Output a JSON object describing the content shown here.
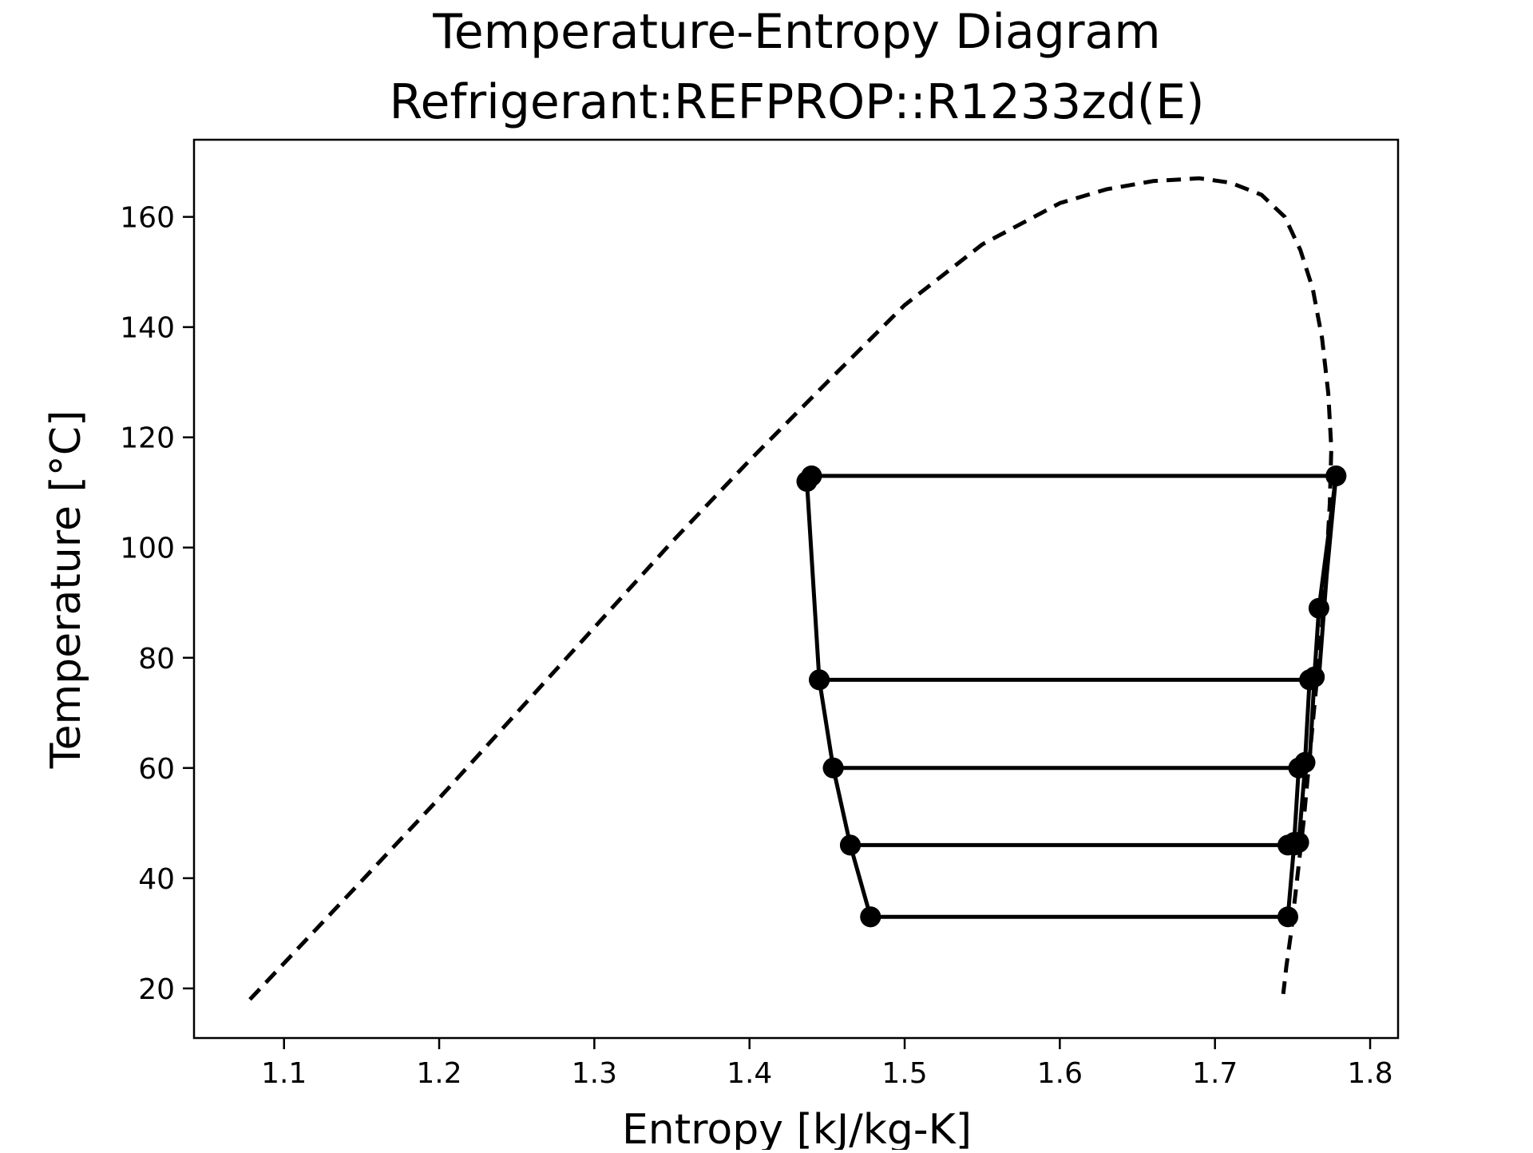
{
  "chart_data": {
    "type": "line",
    "title_line1": "Temperature-Entropy Diagram",
    "title_line2": "Refrigerant:REFPROP::R1233zd(E)",
    "xlabel": "Entropy [kJ/kg-K]",
    "ylabel": "Temperature [°C]",
    "xlim": [
      1.042,
      1.818
    ],
    "ylim": [
      11.0,
      174.0
    ],
    "x_ticks": [
      "1.1",
      "1.2",
      "1.3",
      "1.4",
      "1.5",
      "1.6",
      "1.7",
      "1.8"
    ],
    "y_ticks": [
      "20",
      "40",
      "60",
      "80",
      "100",
      "120",
      "140",
      "160"
    ],
    "grid": false,
    "legend": "none",
    "colors": {
      "line": "#000000",
      "background": "#ffffff"
    },
    "series": [
      {
        "style": "dashed",
        "markers": false,
        "x": [
          1.078,
          1.15,
          1.2,
          1.25,
          1.3,
          1.35,
          1.4,
          1.45,
          1.5,
          1.55,
          1.6,
          1.63,
          1.66,
          1.69,
          1.71,
          1.73,
          1.745,
          1.755,
          1.763,
          1.769,
          1.773,
          1.775,
          1.774,
          1.772,
          1.769,
          1.765,
          1.761,
          1.757,
          1.753,
          1.749,
          1.746,
          1.744
        ],
        "y": [
          18.0,
          39.5,
          54.5,
          70.0,
          85.5,
          101.0,
          115.8,
          130.0,
          144.0,
          155.0,
          162.5,
          165.0,
          166.5,
          167.0,
          166.2,
          164.0,
          160.0,
          154.0,
          147.0,
          138.0,
          128.0,
          118.0,
          108.0,
          98.0,
          86.0,
          74.0,
          62.0,
          50.0,
          40.0,
          30.0,
          24.0,
          19.0
        ]
      },
      {
        "style": "solid",
        "markers": true,
        "x": [
          1.478,
          1.465,
          1.454,
          1.445,
          1.437,
          1.44,
          1.778,
          1.767,
          1.764,
          1.761,
          1.758,
          1.754,
          1.751,
          1.747
        ],
        "y": [
          33.0,
          46.0,
          60.0,
          76.0,
          112.0,
          113.0,
          113.0,
          89.0,
          76.5,
          76.0,
          61.0,
          60.0,
          46.5,
          46.0
        ]
      },
      {
        "style": "solid",
        "markers": true,
        "x": [
          1.437,
          1.44,
          1.778
        ],
        "y": [
          112.0,
          113.0,
          113.0
        ]
      },
      {
        "style": "solid",
        "markers": true,
        "x": [
          1.445,
          1.761,
          1.764
        ],
        "y": [
          76.0,
          76.0,
          76.5
        ]
      },
      {
        "style": "solid",
        "markers": true,
        "x": [
          1.454,
          1.754,
          1.758
        ],
        "y": [
          60.0,
          60.0,
          61.0
        ]
      },
      {
        "style": "solid",
        "markers": true,
        "x": [
          1.465,
          1.751,
          1.754
        ],
        "y": [
          46.0,
          46.0,
          46.5
        ]
      },
      {
        "style": "solid",
        "markers": true,
        "x": [
          1.478,
          1.747
        ],
        "y": [
          33.0,
          33.0
        ]
      },
      {
        "style": "solid",
        "markers": false,
        "x": [
          1.747,
          1.751,
          1.754,
          1.758,
          1.761,
          1.764,
          1.767,
          1.772,
          1.778
        ],
        "y": [
          33.0,
          46.0,
          46.5,
          60.0,
          61.0,
          76.0,
          76.5,
          95.0,
          113.0
        ]
      }
    ]
  }
}
